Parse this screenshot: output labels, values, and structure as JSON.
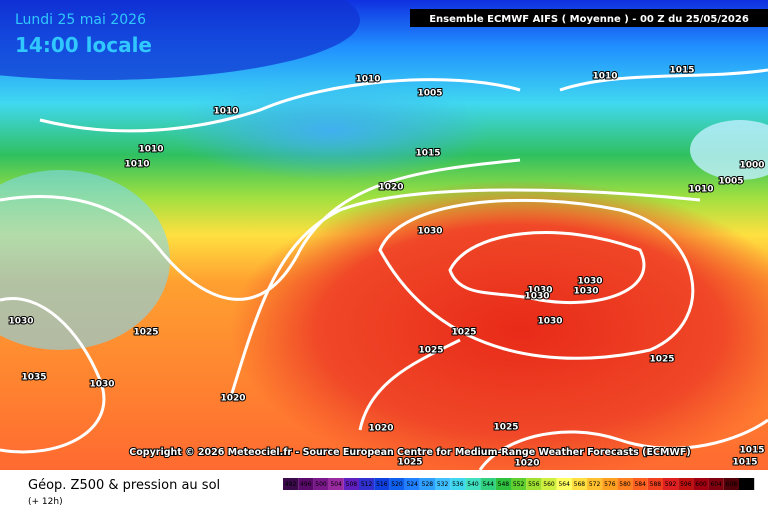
{
  "header": {
    "date": "Lundi 25 mai 2026",
    "time": "14:00 locale",
    "model": "Ensemble ECMWF AIFS  ( Moyenne )  -  00 Z du 25/05/2026"
  },
  "map": {
    "isobar_labels": [
      1010,
      1005,
      1010,
      1015,
      1010,
      1010,
      1010,
      1015,
      1000,
      1005,
      1010,
      1020,
      1030,
      1030,
      1025,
      1030,
      1030,
      1030,
      1030,
      1030,
      1025,
      1025,
      1025,
      1035,
      1030,
      1020,
      1020,
      1025,
      1025,
      1020,
      1015,
      1015
    ]
  },
  "copyright": "Copyright © 2026 Meteociel.fr - Source European Centre for Medium-Range Weather Forecasts (ECMWF)",
  "footer": {
    "title": "Géop. Z500 & pression au sol",
    "lead": "(+ 12h)"
  },
  "colorbar": {
    "labels": [
      492,
      496,
      500,
      504,
      508,
      512,
      516,
      520,
      524,
      528,
      532,
      536,
      540,
      544,
      548,
      552,
      556,
      560,
      564,
      568,
      572,
      576,
      580,
      584,
      588,
      592,
      596,
      600,
      604,
      608,
      612
    ],
    "colors": [
      "#3a0a4a",
      "#5a0a6a",
      "#7a1a8a",
      "#9a2aa0",
      "#6020c0",
      "#3030d0",
      "#1040e0",
      "#1060f0",
      "#2080ff",
      "#30a0ff",
      "#40c0ff",
      "#40d8f0",
      "#40e0c0",
      "#30d080",
      "#30c040",
      "#60d030",
      "#a0e030",
      "#d0f040",
      "#ffff60",
      "#ffe040",
      "#ffc030",
      "#ffa020",
      "#ff8020",
      "#ff6020",
      "#f04020",
      "#e02020",
      "#c01010",
      "#a00010",
      "#800010",
      "#500008",
      "#000000"
    ]
  }
}
